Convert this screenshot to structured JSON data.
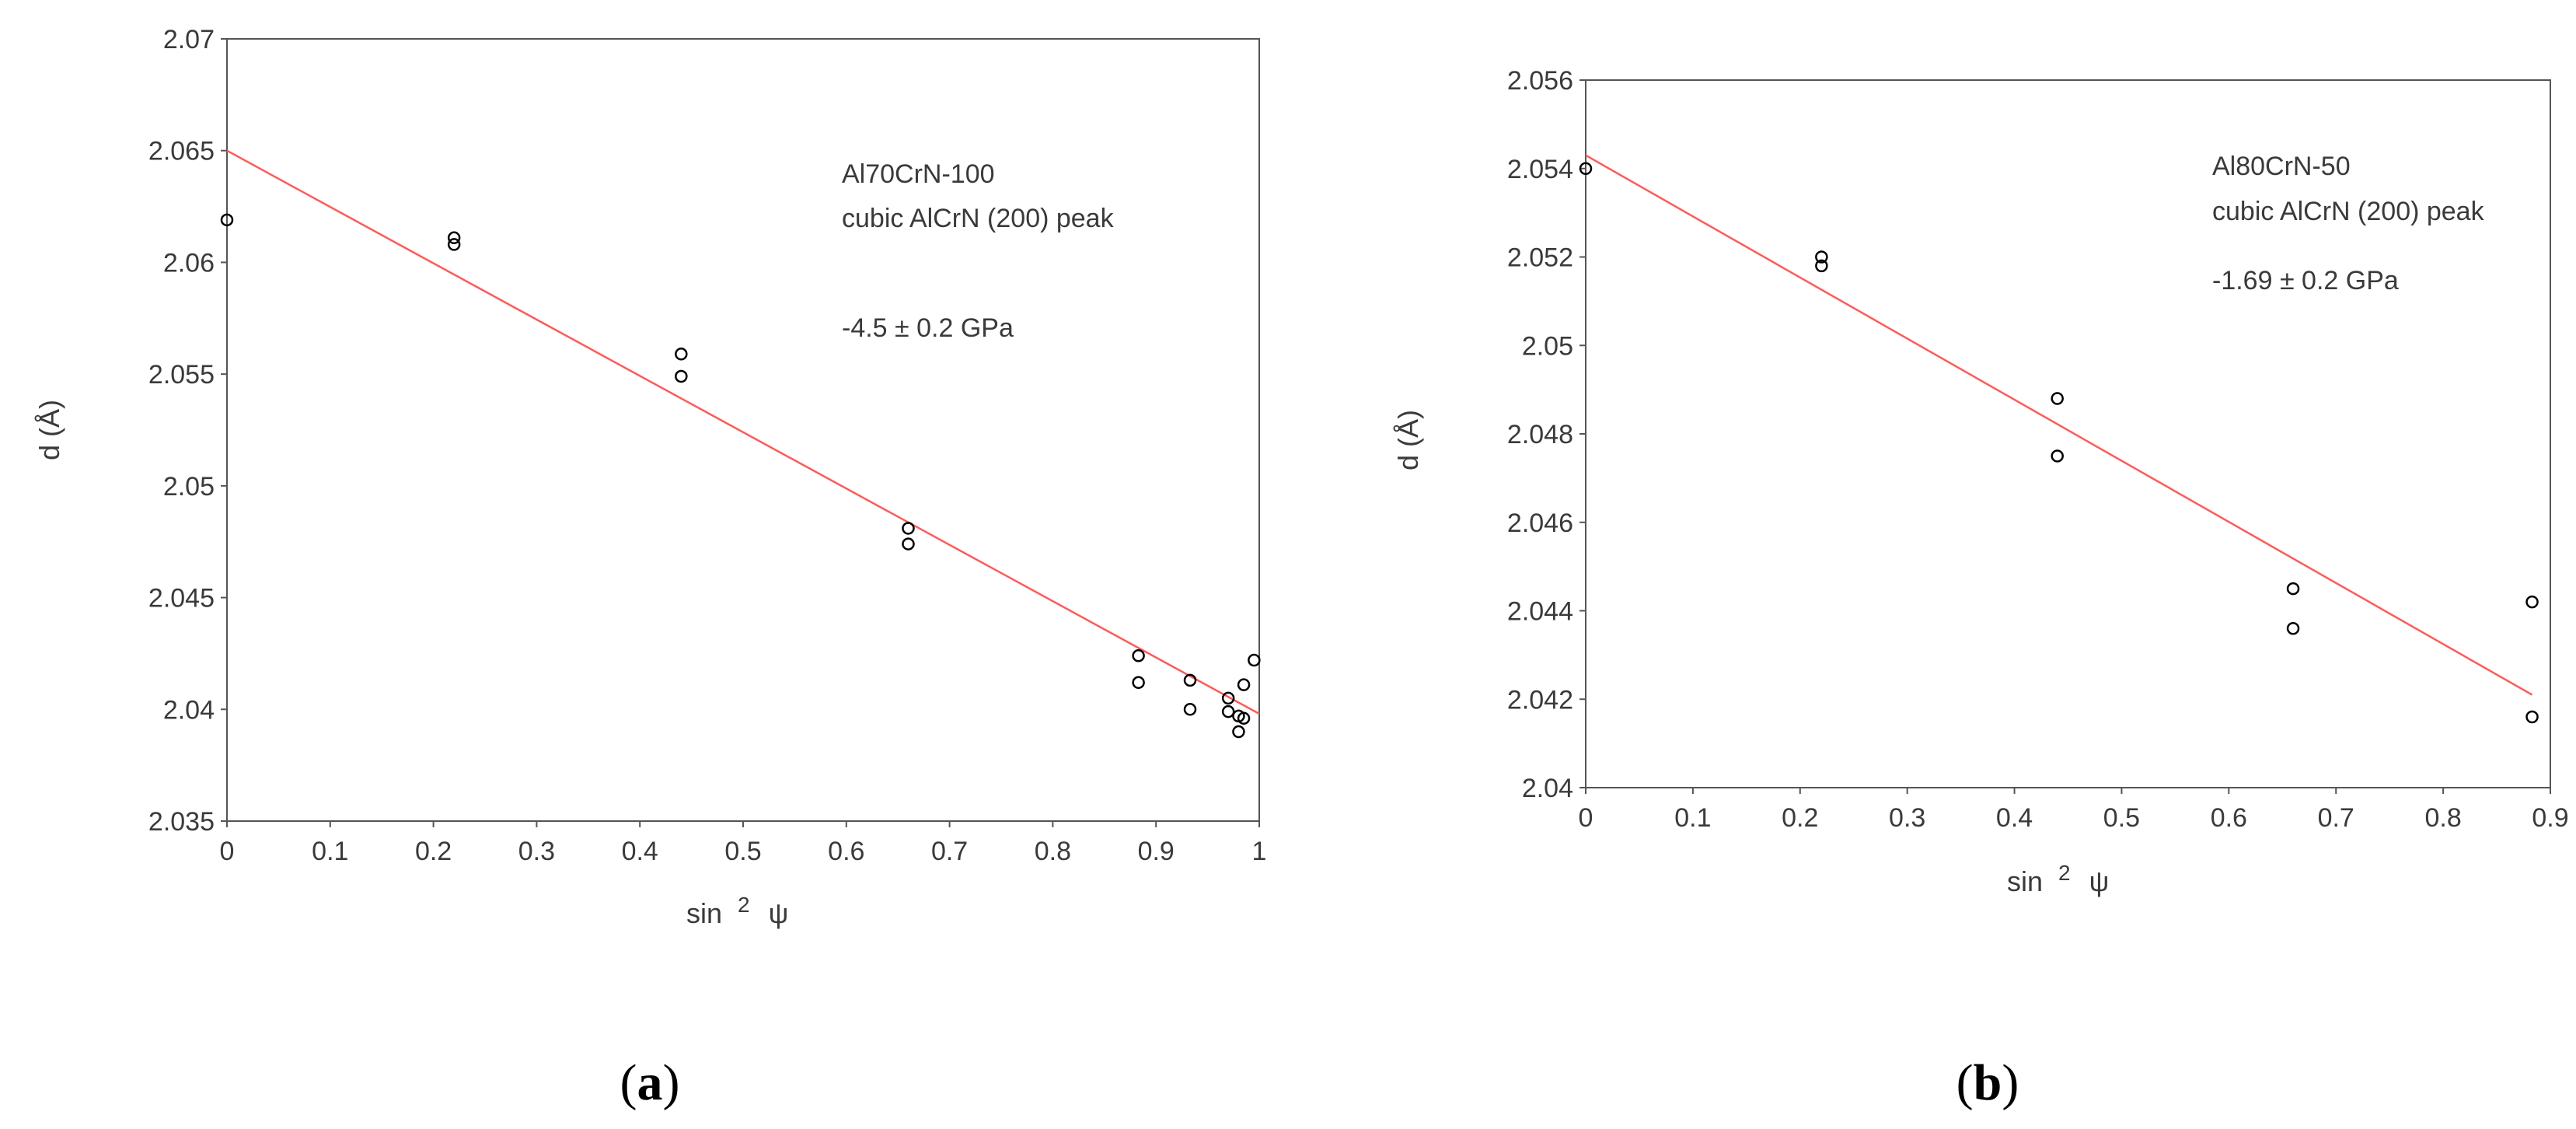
{
  "chart_data": [
    {
      "type": "scatter",
      "panel_label": "a",
      "xlabel": "sin",
      "xlabel_superscript": "2",
      "xlabel_symbol": "ψ",
      "ylabel": "d (Å)",
      "xlim": [
        0,
        1
      ],
      "ylim": [
        2.035,
        2.07
      ],
      "x_ticks": [
        "0",
        "0.1",
        "0.2",
        "0.3",
        "0.4",
        "0.5",
        "0.6",
        "0.7",
        "0.8",
        "0.9",
        "1"
      ],
      "y_ticks": [
        "2.035",
        "2.04",
        "2.045",
        "2.05",
        "2.055",
        "2.06",
        "2.065",
        "2.07"
      ],
      "grid": false,
      "annotations": [
        "Al70CrN-100",
        "cubic AlCrN (200) peak",
        "-4.5 ± 0.2 GPa"
      ],
      "series": [
        {
          "marker": "open-circle",
          "color": "#000000",
          "points": [
            [
              0.0,
              2.0619
            ],
            [
              0.22,
              2.0611
            ],
            [
              0.22,
              2.0608
            ],
            [
              0.44,
              2.0559
            ],
            [
              0.44,
              2.0549
            ],
            [
              0.66,
              2.0481
            ],
            [
              0.66,
              2.0474
            ],
            [
              0.883,
              2.0424
            ],
            [
              0.883,
              2.0412
            ],
            [
              0.933,
              2.0413
            ],
            [
              0.933,
              2.04
            ],
            [
              0.97,
              2.0405
            ],
            [
              0.97,
              2.0399
            ],
            [
              0.98,
              2.0397
            ],
            [
              0.98,
              2.039
            ],
            [
              0.985,
              2.0411
            ],
            [
              0.985,
              2.0396
            ],
            [
              0.995,
              2.0422
            ]
          ]
        }
      ],
      "fit_line": {
        "color": "#ff5a5a",
        "x": [
          0,
          1
        ],
        "y": [
          2.065,
          2.0398
        ]
      }
    },
    {
      "type": "scatter",
      "panel_label": "b",
      "xlabel": "sin",
      "xlabel_superscript": "2",
      "xlabel_symbol": "ψ",
      "ylabel": "d (Å)",
      "xlim": [
        0,
        0.9
      ],
      "ylim": [
        2.04,
        2.056
      ],
      "x_ticks": [
        "0",
        "0.1",
        "0.2",
        "0.3",
        "0.4",
        "0.5",
        "0.6",
        "0.7",
        "0.8",
        "0.9"
      ],
      "y_ticks": [
        "2.04",
        "2.042",
        "2.044",
        "2.046",
        "2.048",
        "2.05",
        "2.052",
        "2.054",
        "2.056"
      ],
      "grid": false,
      "annotations": [
        "Al80CrN-50",
        "cubic AlCrN (200) peak",
        "-1.69 ± 0.2 GPa"
      ],
      "series": [
        {
          "marker": "open-circle",
          "color": "#000000",
          "points": [
            [
              0.0,
              2.054
            ],
            [
              0.22,
              2.052
            ],
            [
              0.22,
              2.0518
            ],
            [
              0.44,
              2.0488
            ],
            [
              0.44,
              2.0475
            ],
            [
              0.66,
              2.0445
            ],
            [
              0.66,
              2.0436
            ],
            [
              0.883,
              2.0442
            ],
            [
              0.883,
              2.0416
            ]
          ]
        }
      ],
      "fit_line": {
        "color": "#ff5a5a",
        "x": [
          0,
          0.883
        ],
        "y": [
          2.0543,
          2.0421
        ]
      }
    }
  ]
}
